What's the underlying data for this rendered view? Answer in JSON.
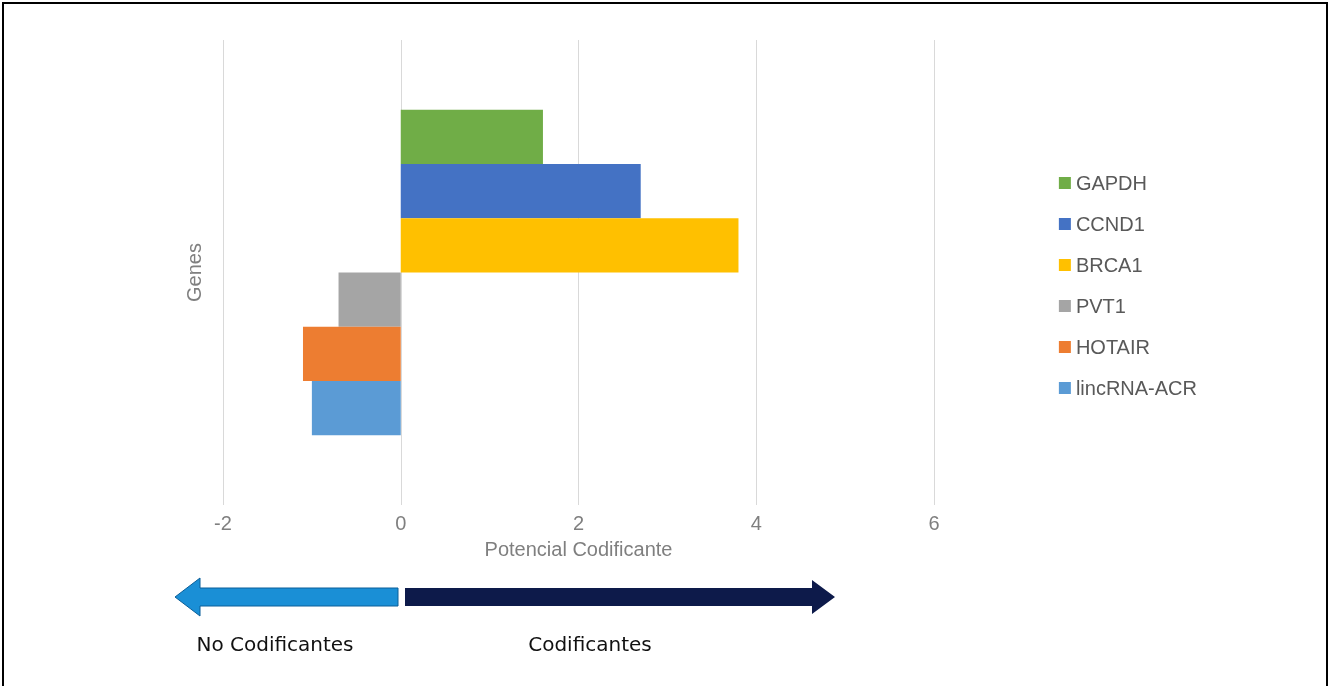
{
  "chart_data": {
    "type": "bar",
    "orientation": "horizontal",
    "xlabel": "Potencial Codificante",
    "ylabel": "Genes",
    "categories": [
      null
    ],
    "series": [
      {
        "name": "GAPDH",
        "color": "#70ad47",
        "values": [
          1.6
        ]
      },
      {
        "name": "CCND1",
        "color": "#4472c4",
        "values": [
          2.7
        ]
      },
      {
        "name": "BRCA1",
        "color": "#ffc000",
        "values": [
          3.8
        ]
      },
      {
        "name": "PVT1",
        "color": "#a5a5a5",
        "values": [
          -0.7
        ]
      },
      {
        "name": "HOTAIR",
        "color": "#ed7d31",
        "values": [
          -1.1
        ]
      },
      {
        "name": "lincRNA-ACR",
        "color": "#5b9bd5",
        "values": [
          -1.0
        ]
      }
    ],
    "xlim": [
      -2,
      6
    ],
    "xticks": [
      -2,
      0,
      2,
      4,
      6
    ],
    "grid": "x",
    "legend": "right",
    "annotations": [
      "No Codificantes",
      "Codificantes"
    ]
  }
}
